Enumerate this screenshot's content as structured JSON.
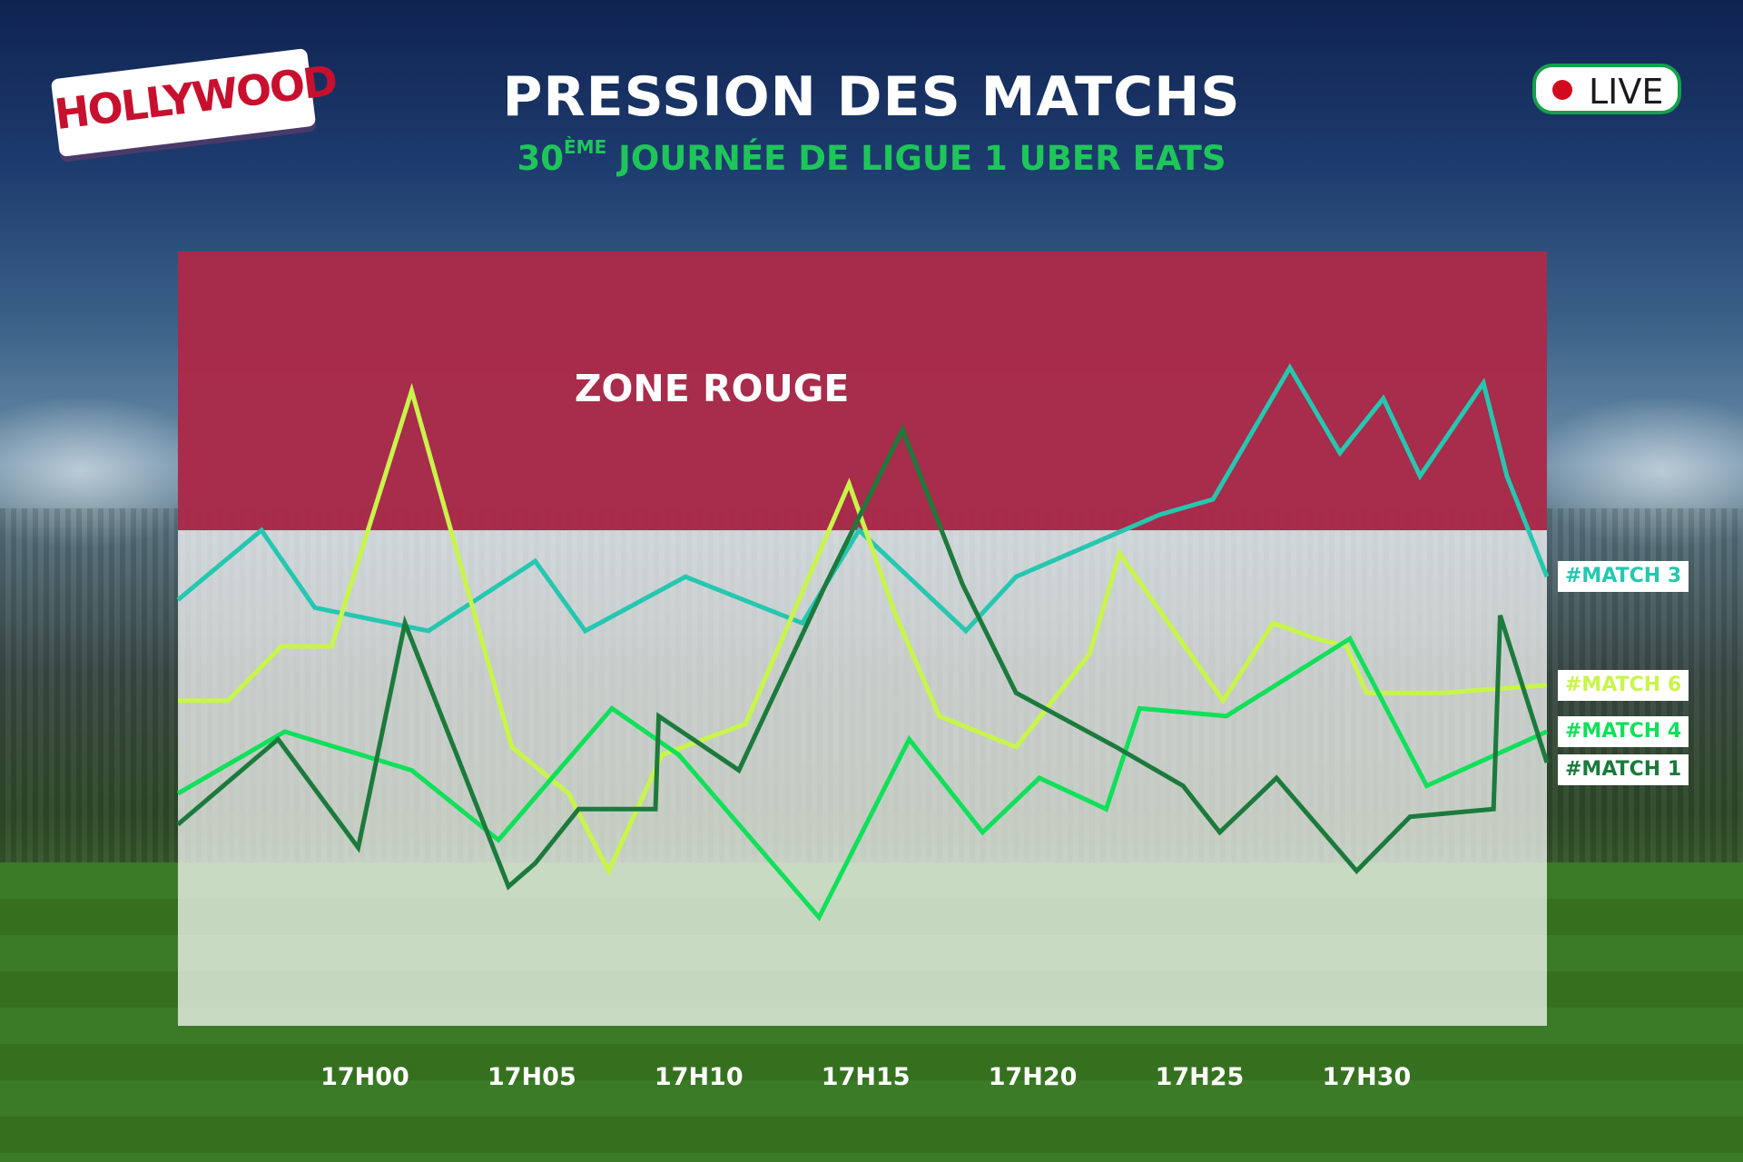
{
  "logo": {
    "text": "HOLLYWOOD",
    "brand_color": "#c8102e"
  },
  "header": {
    "title": "PRESSION DES MATCHS",
    "subtitle_number": "30",
    "subtitle_sup": "ÈME",
    "subtitle_rest": " JOURNÉE DE LIGUE 1 UBER EATS",
    "subtitle_color": "#1ec65a"
  },
  "live_badge": {
    "label": "LIVE",
    "dot_color": "#d20a1e",
    "border_color": "#15a04a"
  },
  "chart_data": {
    "type": "line",
    "title": "PRESSION DES MATCHS",
    "subtitle": "30ÈME JOURNÉE DE LIGUE 1 UBER EATS",
    "xlabel": "",
    "ylabel": "",
    "x_ticks": [
      "17H00",
      "17H05",
      "17H10",
      "17H15",
      "17H20",
      "17H25",
      "17H30"
    ],
    "x_tick_values": [
      0,
      5,
      10,
      15,
      20,
      25,
      30
    ],
    "xlim": [
      -5.6,
      35.4
    ],
    "ylim": [
      0,
      100
    ],
    "grid": false,
    "legend": "right",
    "zone": {
      "label": "ZONE ROUGE",
      "from": 64,
      "to": 100,
      "color": "#a51e3f"
    },
    "series": [
      {
        "name": "#MATCH 3",
        "color": "#25c7b0",
        "x": [
          -5.6,
          -3.1,
          -1.5,
          1.9,
          5.1,
          6.6,
          9.6,
          13.1,
          14.8,
          18.0,
          19.5,
          23.8,
          25.4,
          27.7,
          29.2,
          30.5,
          31.6,
          33.5,
          34.2,
          35.4
        ],
        "y": [
          55,
          64,
          54,
          51,
          60,
          51,
          58,
          52,
          64,
          51,
          58,
          66,
          68,
          85,
          74,
          81,
          71,
          83,
          71,
          58
        ]
      },
      {
        "name": "#MATCH 6",
        "color": "#c8f54a",
        "x": [
          -5.6,
          -4.1,
          -2.5,
          -1.0,
          1.4,
          4.4,
          6.1,
          7.3,
          8.9,
          11.4,
          13.0,
          14.5,
          15.9,
          17.2,
          19.5,
          21.7,
          22.6,
          25.7,
          27.2,
          28.5,
          29.4,
          30.0,
          32.3,
          35.4
        ],
        "y": [
          42,
          42,
          49,
          49,
          82,
          36,
          30,
          20,
          35,
          39,
          55,
          70,
          53,
          40,
          36,
          48,
          61,
          42,
          52,
          50,
          49,
          43,
          43,
          44
        ]
      },
      {
        "name": "#MATCH 4",
        "color": "#10e05a",
        "x": [
          -5.6,
          -2.4,
          1.4,
          4.0,
          7.4,
          9.4,
          13.6,
          16.3,
          18.5,
          20.2,
          22.2,
          23.2,
          25.8,
          29.5,
          31.8,
          35.4
        ],
        "y": [
          30,
          38,
          33,
          24,
          41,
          35,
          14,
          37,
          25,
          32,
          28,
          41,
          40,
          50,
          31,
          38
        ]
      },
      {
        "name": "#MATCH 1",
        "color": "#1b7a3c",
        "x": [
          -5.6,
          -2.6,
          -0.2,
          1.2,
          4.3,
          5.1,
          6.4,
          8.7,
          8.8,
          11.2,
          13.8,
          16.1,
          17.9,
          19.5,
          22.5,
          24.5,
          25.6,
          27.3,
          29.7,
          31.3,
          33.8,
          34.0,
          35.4
        ],
        "y": [
          26,
          37,
          23,
          52,
          18,
          21,
          28,
          28,
          40,
          33,
          57,
          77,
          57,
          43,
          36,
          31,
          25,
          32,
          20,
          27,
          28,
          53,
          34
        ]
      }
    ]
  }
}
